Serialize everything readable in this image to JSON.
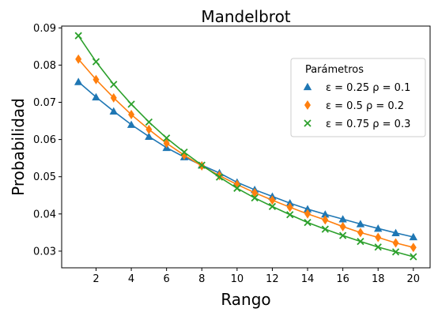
{
  "chart_data": {
    "type": "line",
    "title": "Mandelbrot",
    "xlabel": "Rango",
    "ylabel": "Probabilidad",
    "xlim": [
      0.05,
      20.95
    ],
    "ylim": [
      0.02552,
      0.09049
    ],
    "x": [
      1,
      2,
      3,
      4,
      5,
      6,
      7,
      8,
      9,
      10,
      11,
      12,
      13,
      14,
      15,
      16,
      17,
      18,
      19,
      20
    ],
    "x_ticks": [
      2,
      4,
      6,
      8,
      10,
      12,
      14,
      16,
      18,
      20
    ],
    "y_ticks": [
      0.03,
      0.04,
      0.05,
      0.06,
      0.07,
      0.08,
      0.09
    ],
    "y_tick_labels": [
      "0.03",
      "0.04",
      "0.05",
      "0.06",
      "0.07",
      "0.08",
      "0.09"
    ],
    "grid": false,
    "legend": {
      "title": "Parámetros",
      "placement": "upper right"
    },
    "series": [
      {
        "name": "ε = 0.25  ρ = 0.1",
        "color": "#1f77b4",
        "marker": "triangle",
        "values": [
          0.0755,
          0.0714,
          0.0676,
          0.064,
          0.0608,
          0.0578,
          0.0553,
          0.0531,
          0.051,
          0.0485,
          0.0465,
          0.0447,
          0.0429,
          0.0413,
          0.0399,
          0.0386,
          0.0373,
          0.0361,
          0.0349,
          0.0338
        ]
      },
      {
        "name": "ε = 0.5  ρ = 0.2",
        "color": "#ff7f0e",
        "marker": "diamond",
        "values": [
          0.0816,
          0.0761,
          0.0712,
          0.0667,
          0.0627,
          0.059,
          0.0558,
          0.0529,
          0.0503,
          0.0479,
          0.0457,
          0.0437,
          0.0418,
          0.04,
          0.0384,
          0.0366,
          0.035,
          0.0337,
          0.0322,
          0.031
        ]
      },
      {
        "name": "ε = 0.75  ρ = 0.3",
        "color": "#2ca02c",
        "marker": "x",
        "values": [
          0.0879,
          0.0809,
          0.0748,
          0.0695,
          0.0647,
          0.0604,
          0.0566,
          0.0531,
          0.0499,
          0.0469,
          0.0443,
          0.042,
          0.0398,
          0.0377,
          0.0359,
          0.0342,
          0.0326,
          0.0311,
          0.0298,
          0.0285
        ]
      }
    ]
  }
}
